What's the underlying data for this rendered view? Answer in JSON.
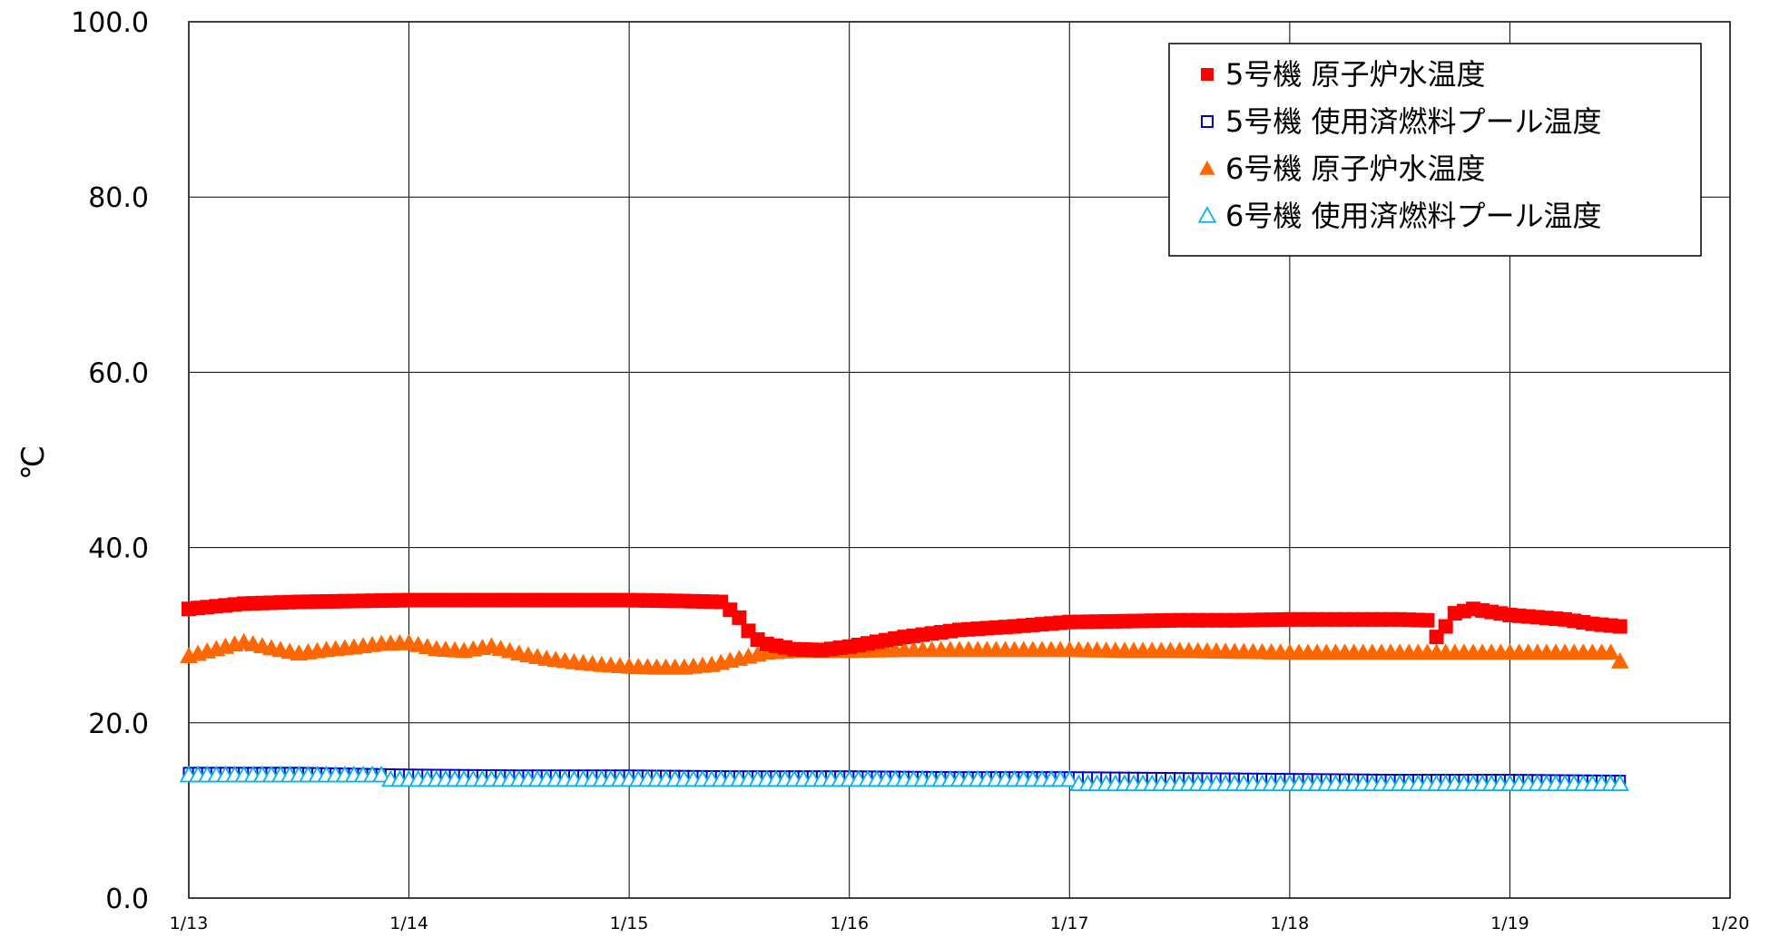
{
  "chart_data": {
    "type": "scatter",
    "title": "",
    "xlabel": "",
    "ylabel": "℃",
    "x_tick_labels": [
      "1/13",
      "1/14",
      "1/15",
      "1/16",
      "1/17",
      "1/18",
      "1/19",
      "1/20"
    ],
    "y_tick_labels": [
      "0.0",
      "20.0",
      "40.0",
      "60.0",
      "80.0",
      "100.0"
    ],
    "xlim": [
      "1/13",
      "1/20"
    ],
    "ylim": [
      0,
      100
    ],
    "grid": true,
    "legend_position": "top-right",
    "series": [
      {
        "name": "5号機 原子炉水温度",
        "marker": "square-filled",
        "color": "#ff0000",
        "points": [
          [
            "1/13 00:00",
            33.0
          ],
          [
            "1/13 06:00",
            33.6
          ],
          [
            "1/13 12:00",
            33.8
          ],
          [
            "1/13 18:00",
            33.9
          ],
          [
            "1/14 00:00",
            34.0
          ],
          [
            "1/14 06:00",
            34.0
          ],
          [
            "1/14 12:00",
            34.0
          ],
          [
            "1/14 18:00",
            34.0
          ],
          [
            "1/15 00:00",
            34.0
          ],
          [
            "1/15 06:00",
            33.9
          ],
          [
            "1/15 10:00",
            33.8
          ],
          [
            "1/15 12:00",
            32.0
          ],
          [
            "1/15 13:00",
            30.5
          ],
          [
            "1/15 14:00",
            29.5
          ],
          [
            "1/15 15:00",
            29.0
          ],
          [
            "1/15 18:00",
            28.4
          ],
          [
            "1/15 21:00",
            28.3
          ],
          [
            "1/16 00:00",
            28.7
          ],
          [
            "1/16 06:00",
            29.8
          ],
          [
            "1/16 12:00",
            30.6
          ],
          [
            "1/16 18:00",
            31.0
          ],
          [
            "1/17 00:00",
            31.5
          ],
          [
            "1/17 06:00",
            31.6
          ],
          [
            "1/17 12:00",
            31.7
          ],
          [
            "1/17 18:00",
            31.7
          ],
          [
            "1/18 00:00",
            31.8
          ],
          [
            "1/18 06:00",
            31.8
          ],
          [
            "1/18 12:00",
            31.8
          ],
          [
            "1/18 15:00",
            31.7
          ],
          [
            "1/18 16:00",
            29.8
          ],
          [
            "1/18 17:00",
            31.0
          ],
          [
            "1/18 18:00",
            32.5
          ],
          [
            "1/18 20:00",
            33.0
          ],
          [
            "1/19 00:00",
            32.3
          ],
          [
            "1/19 06:00",
            31.8
          ],
          [
            "1/19 09:00",
            31.3
          ],
          [
            "1/19 12:00",
            31.0
          ]
        ]
      },
      {
        "name": "5号機 使用済燃料プール温度",
        "marker": "square-open",
        "color": "#0000cc",
        "points": [
          [
            "1/13 00:00",
            14.3
          ],
          [
            "1/13 12:00",
            14.3
          ],
          [
            "1/14 00:00",
            14.1
          ],
          [
            "1/14 12:00",
            14.0
          ],
          [
            "1/15 00:00",
            14.0
          ],
          [
            "1/15 12:00",
            13.9
          ],
          [
            "1/16 00:00",
            13.9
          ],
          [
            "1/16 12:00",
            13.8
          ],
          [
            "1/17 00:00",
            13.8
          ],
          [
            "1/17 12:00",
            13.7
          ],
          [
            "1/18 00:00",
            13.6
          ],
          [
            "1/18 12:00",
            13.5
          ],
          [
            "1/19 00:00",
            13.5
          ],
          [
            "1/19 12:00",
            13.4
          ]
        ]
      },
      {
        "name": "6号機 原子炉水温度",
        "marker": "triangle-filled",
        "color": "#ff6600",
        "points": [
          [
            "1/13 00:00",
            27.6
          ],
          [
            "1/13 03:00",
            28.4
          ],
          [
            "1/13 06:00",
            29.2
          ],
          [
            "1/13 09:00",
            28.5
          ],
          [
            "1/13 12:00",
            27.9
          ],
          [
            "1/13 15:00",
            28.3
          ],
          [
            "1/13 18:00",
            28.6
          ],
          [
            "1/13 21:00",
            29.0
          ],
          [
            "1/14 00:00",
            29.1
          ],
          [
            "1/14 03:00",
            28.4
          ],
          [
            "1/14 06:00",
            28.2
          ],
          [
            "1/14 09:00",
            28.7
          ],
          [
            "1/14 12:00",
            27.9
          ],
          [
            "1/14 15:00",
            27.3
          ],
          [
            "1/14 18:00",
            26.9
          ],
          [
            "1/14 21:00",
            26.6
          ],
          [
            "1/15 00:00",
            26.4
          ],
          [
            "1/15 03:00",
            26.3
          ],
          [
            "1/15 06:00",
            26.3
          ],
          [
            "1/15 09:00",
            26.6
          ],
          [
            "1/15 12:00",
            27.3
          ],
          [
            "1/15 15:00",
            28.0
          ],
          [
            "1/15 18:00",
            28.2
          ],
          [
            "1/15 21:00",
            28.2
          ],
          [
            "1/16 00:00",
            28.2
          ],
          [
            "1/16 06:00",
            28.3
          ],
          [
            "1/16 12:00",
            28.3
          ],
          [
            "1/16 18:00",
            28.3
          ],
          [
            "1/17 00:00",
            28.3
          ],
          [
            "1/17 06:00",
            28.2
          ],
          [
            "1/17 12:00",
            28.2
          ],
          [
            "1/17 18:00",
            28.1
          ],
          [
            "1/18 00:00",
            28.0
          ],
          [
            "1/18 06:00",
            28.0
          ],
          [
            "1/18 12:00",
            28.0
          ],
          [
            "1/18 18:00",
            28.0
          ],
          [
            "1/19 00:00",
            28.0
          ],
          [
            "1/19 06:00",
            28.0
          ],
          [
            "1/19 11:00",
            28.0
          ],
          [
            "1/19 12:00",
            27.0
          ]
        ]
      },
      {
        "name": "6号機 使用済燃料プール温度",
        "marker": "triangle-open",
        "color": "#00b0f0",
        "points": [
          [
            "1/13 00:00",
            14.0
          ],
          [
            "1/13 12:00",
            14.0
          ],
          [
            "1/13 21:00",
            14.0
          ],
          [
            "1/13 22:00",
            13.5
          ],
          [
            "1/14 12:00",
            13.5
          ],
          [
            "1/15 00:00",
            13.5
          ],
          [
            "1/15 12:00",
            13.5
          ],
          [
            "1/16 00:00",
            13.5
          ],
          [
            "1/16 12:00",
            13.5
          ],
          [
            "1/17 00:00",
            13.5
          ],
          [
            "1/17 01:00",
            13.0
          ],
          [
            "1/17 12:00",
            13.0
          ],
          [
            "1/18 00:00",
            13.0
          ],
          [
            "1/18 12:00",
            13.0
          ],
          [
            "1/19 00:00",
            13.0
          ],
          [
            "1/19 12:00",
            13.0
          ]
        ]
      }
    ]
  }
}
